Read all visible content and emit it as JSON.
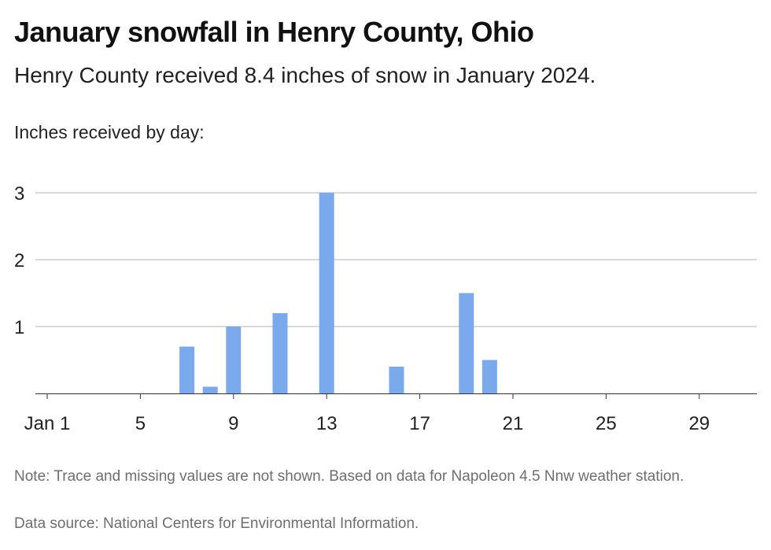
{
  "header": {
    "title": "January snowfall in Henry County, Ohio",
    "subtitle": "Henry County received 8.4 inches of snow in January 2024.",
    "axis_caption": "Inches received by day:"
  },
  "footer": {
    "note": "Note: Trace and missing values are not shown. Based on data for Napoleon 4.5 Nnw weather station.",
    "source": "Data source: National Centers for Environmental Information."
  },
  "colors": {
    "bar": "#7aaaec",
    "grid": "#b3b3b3",
    "axis": "#333333"
  },
  "chart_data": {
    "type": "bar",
    "title": "January snowfall in Henry County, Ohio",
    "ylabel": "Inches received by day:",
    "xlabel": "",
    "x_range": [
      1,
      31
    ],
    "ylim": [
      0,
      3
    ],
    "y_ticks": [
      1,
      2,
      3
    ],
    "x_ticks": [
      {
        "day": 1,
        "label": "Jan 1"
      },
      {
        "day": 5,
        "label": "5"
      },
      {
        "day": 9,
        "label": "9"
      },
      {
        "day": 13,
        "label": "13"
      },
      {
        "day": 17,
        "label": "17"
      },
      {
        "day": 21,
        "label": "21"
      },
      {
        "day": 25,
        "label": "25"
      },
      {
        "day": 29,
        "label": "29"
      }
    ],
    "grid": true,
    "values": [
      {
        "day": 7,
        "inches": 0.7
      },
      {
        "day": 8,
        "inches": 0.1
      },
      {
        "day": 9,
        "inches": 1.0
      },
      {
        "day": 11,
        "inches": 1.2
      },
      {
        "day": 13,
        "inches": 3.0
      },
      {
        "day": 16,
        "inches": 0.4
      },
      {
        "day": 19,
        "inches": 1.5
      },
      {
        "day": 20,
        "inches": 0.5
      }
    ]
  }
}
